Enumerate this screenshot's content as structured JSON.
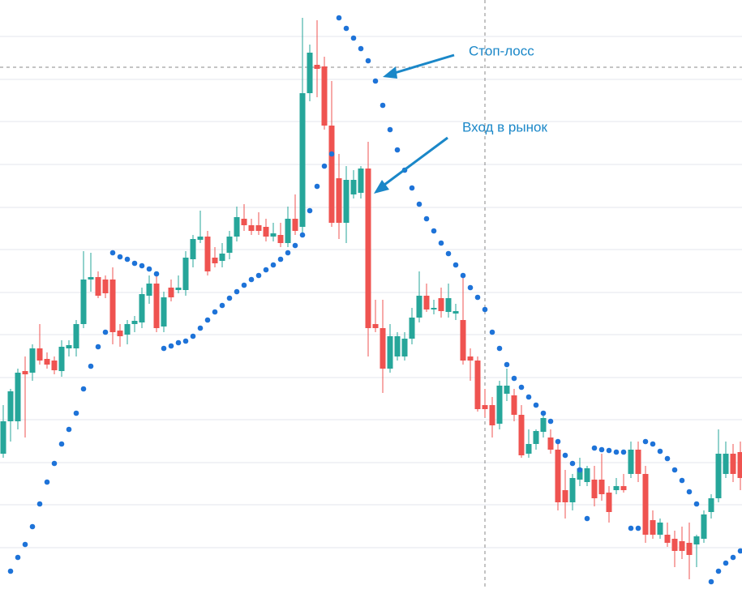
{
  "chart_data": {
    "type": "candlestick",
    "open": [
      440,
      480,
      480,
      542,
      540,
      570,
      557,
      555,
      542,
      570,
      570,
      600,
      655,
      658,
      655,
      655,
      592,
      587,
      600,
      602,
      635,
      650,
      597,
      645,
      642,
      642,
      680,
      704,
      708,
      682,
      678,
      688,
      708,
      730,
      722,
      722,
      720,
      708,
      710,
      700,
      730,
      720,
      885,
      920,
      918,
      845,
      780,
      725,
      760,
      762,
      792,
      600,
      595,
      545,
      560,
      560,
      582,
      608,
      635,
      618,
      632,
      615,
      613,
      605,
      560,
      555,
      500,
      500,
      477,
      514,
      512,
      488,
      440,
      452,
      467,
      460,
      445,
      395,
      380,
      408,
      405,
      408,
      408,
      392,
      395,
      400,
      415,
      445,
      415,
      358,
      340,
      340,
      335,
      332,
      330,
      328,
      335,
      368,
      385,
      415,
      440,
      442
    ],
    "high": [
      500,
      520,
      545,
      560,
      575,
      600,
      565,
      560,
      580,
      580,
      605,
      690,
      688,
      665,
      660,
      670,
      600,
      605,
      610,
      645,
      660,
      660,
      640,
      655,
      660,
      690,
      710,
      740,
      715,
      695,
      700,
      715,
      745,
      748,
      730,
      738,
      730,
      725,
      725,
      745,
      760,
      978,
      945,
      975,
      930,
      900,
      810,
      795,
      790,
      795,
      825,
      630,
      630,
      600,
      590,
      590,
      620,
      665,
      650,
      630,
      645,
      650,
      625,
      660,
      570,
      560,
      520,
      510,
      530,
      545,
      520,
      500,
      470,
      470,
      490,
      470,
      455,
      420,
      415,
      435,
      425,
      425,
      440,
      400,
      410,
      415,
      455,
      455,
      425,
      370,
      360,
      355,
      345,
      350,
      355,
      340,
      370,
      390,
      470,
      455,
      452,
      455
    ],
    "low": [
      435,
      455,
      470,
      460,
      530,
      550,
      545,
      538,
      535,
      560,
      560,
      595,
      640,
      632,
      632,
      575,
      572,
      575,
      590,
      595,
      625,
      590,
      590,
      628,
      638,
      635,
      670,
      700,
      660,
      670,
      670,
      680,
      702,
      715,
      710,
      710,
      702,
      702,
      695,
      695,
      710,
      710,
      875,
      880,
      840,
      720,
      705,
      700,
      755,
      755,
      560,
      590,
      515,
      540,
      555,
      555,
      575,
      602,
      615,
      612,
      608,
      608,
      605,
      550,
      530,
      492,
      485,
      460,
      470,
      505,
      480,
      435,
      435,
      445,
      460,
      440,
      370,
      360,
      370,
      400,
      400,
      375,
      382,
      355,
      390,
      392,
      410,
      405,
      330,
      335,
      335,
      325,
      300,
      310,
      285,
      300,
      330,
      360,
      380,
      410,
      405,
      395
    ],
    "close": [
      480,
      517,
      540,
      538,
      570,
      555,
      550,
      543,
      572,
      574,
      600,
      655,
      658,
      635,
      638,
      590,
      585,
      600,
      604,
      637,
      650,
      595,
      633,
      633,
      645,
      682,
      705,
      708,
      665,
      675,
      687,
      708,
      732,
      722,
      715,
      715,
      708,
      712,
      700,
      730,
      715,
      885,
      935,
      915,
      845,
      725,
      725,
      778,
      778,
      792,
      595,
      595,
      545,
      585,
      585,
      582,
      608,
      635,
      618,
      620,
      616,
      632,
      616,
      555,
      555,
      495,
      495,
      475,
      524,
      524,
      488,
      438,
      452,
      468,
      484,
      445,
      380,
      380,
      410,
      422,
      422,
      385,
      390,
      368,
      400,
      395,
      445,
      415,
      340,
      340,
      355,
      330,
      320,
      320,
      315,
      338,
      365,
      385,
      440,
      440,
      415,
      410
    ],
    "sar": [
      null,
      295,
      312,
      328,
      350,
      378,
      405,
      428,
      452,
      470,
      490,
      520,
      548,
      572,
      590,
      688,
      683,
      680,
      675,
      672,
      668,
      662,
      570,
      573,
      577,
      579,
      585,
      595,
      605,
      615,
      623,
      632,
      640,
      648,
      655,
      660,
      667,
      673,
      680,
      688,
      697,
      710,
      740,
      770,
      795,
      810,
      978,
      965,
      953,
      940,
      925,
      900,
      870,
      840,
      815,
      790,
      768,
      748,
      730,
      715,
      700,
      687,
      673,
      660,
      645,
      633,
      618,
      590,
      570,
      550,
      533,
      522,
      510,
      500,
      490,
      480,
      455,
      438,
      428,
      420,
      360,
      447,
      445,
      444,
      442,
      442,
      348,
      348,
      455,
      452,
      443,
      434,
      420,
      407,
      393,
      378,
      null,
      282,
      295,
      305,
      312,
      320
    ],
    "up_color": "#26a69a",
    "down_color": "#ef5350",
    "sar_color": "#1e73d8",
    "ylim": [
      273,
      1000
    ],
    "yticks": [
      955,
      902,
      850,
      797,
      744,
      692,
      639,
      587,
      534,
      482,
      429,
      377,
      324
    ],
    "grid": true,
    "annotations": [
      "Стоп-лосс",
      "Вход в рынок"
    ]
  }
}
